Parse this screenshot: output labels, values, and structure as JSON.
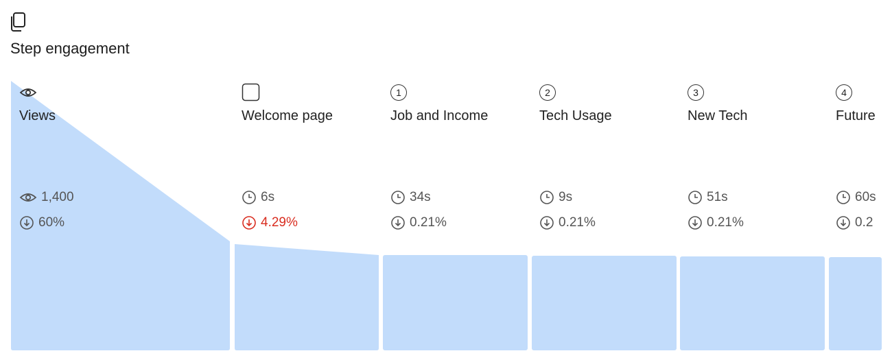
{
  "header": {
    "title": "Step engagement"
  },
  "steps": [
    {
      "icon": "eye",
      "label": "Views",
      "stat_icon": "eye",
      "stat": "1,400",
      "dropoff": "60%"
    },
    {
      "icon": "checkbox",
      "label": "Welcome page",
      "stat_icon": "clock",
      "stat": "6s",
      "dropoff": "4.29%",
      "dropoff_color": "#d92d20"
    },
    {
      "icon": "badge",
      "badge": "1",
      "label": "Job and Income",
      "stat_icon": "clock",
      "stat": "34s",
      "dropoff": "0.21%"
    },
    {
      "icon": "badge",
      "badge": "2",
      "label": "Tech Usage",
      "stat_icon": "clock",
      "stat": "9s",
      "dropoff": "0.21%"
    },
    {
      "icon": "badge",
      "badge": "3",
      "label": "New Tech",
      "stat_icon": "clock",
      "stat": "51s",
      "dropoff": "0.21%"
    },
    {
      "icon": "badge",
      "badge": "4",
      "label": "Future",
      "stat_icon": "clock",
      "stat": "60s",
      "dropoff": "0.2"
    }
  ]
}
